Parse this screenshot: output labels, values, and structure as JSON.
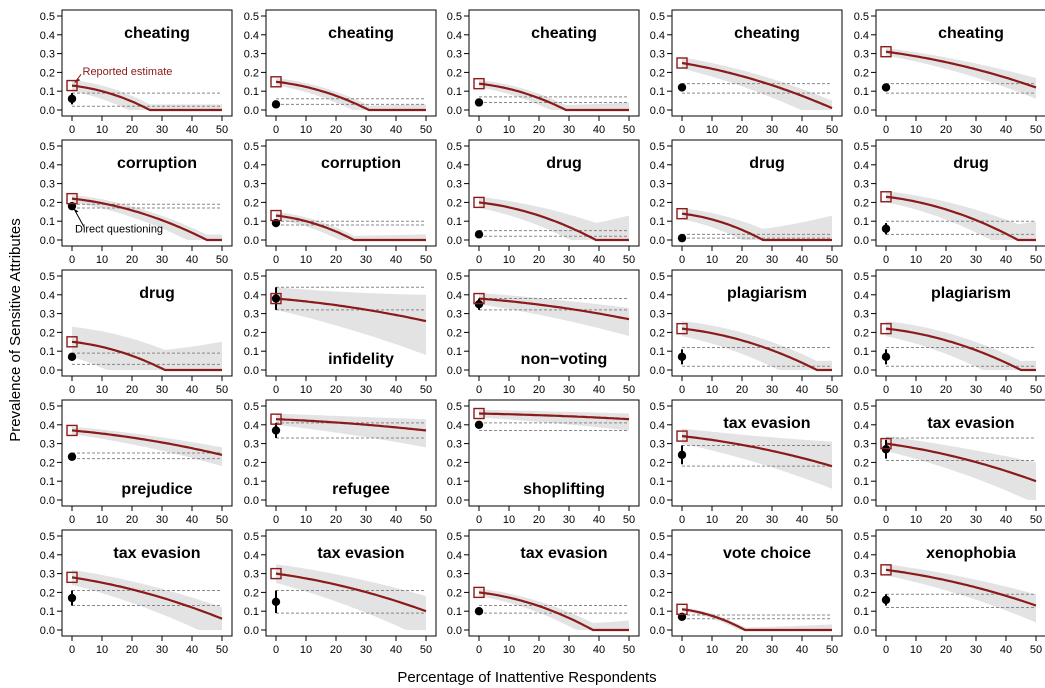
{
  "chart_data": {
    "type": "line",
    "xlabel": "Percentage of Inattentive Respondents",
    "ylabel": "Prevalence of Sensitive Attributes",
    "xlim": [
      0,
      50
    ],
    "ylim": [
      0,
      0.5
    ],
    "x_ticks": [
      "0",
      "10",
      "20",
      "30",
      "40",
      "50"
    ],
    "y_ticks": [
      "0.0",
      "0.1",
      "0.2",
      "0.3",
      "0.4",
      "0.5"
    ],
    "colors": {
      "line": "#8B1A1A",
      "band": "#e3e3e3",
      "direct": "#000000",
      "reference": "#888888"
    },
    "annotations": {
      "reported": {
        "text": "Reported estimate",
        "color": "#8B1A1A",
        "panel": 0
      },
      "direct": {
        "text": "Direct questioning",
        "color": "#000000",
        "panel": 5
      }
    },
    "panels": [
      {
        "label": "cheating",
        "label_pos": "top",
        "reported": 0.13,
        "zero_at": 26,
        "end": 0.0,
        "direct": 0.06,
        "direct_lo": 0.03,
        "direct_hi": 0.09,
        "ref": [
          0.09,
          0.02
        ],
        "band_w": 0.03,
        "band_end_hi": 0.03
      },
      {
        "label": "cheating",
        "label_pos": "top",
        "reported": 0.15,
        "zero_at": 31,
        "end": 0.0,
        "direct": 0.03,
        "direct_lo": 0.02,
        "direct_hi": 0.04,
        "ref": [
          0.06,
          0.03
        ],
        "band_w": 0.02,
        "band_end_hi": 0.03
      },
      {
        "label": "cheating",
        "label_pos": "top",
        "reported": 0.14,
        "zero_at": 29,
        "end": 0.0,
        "direct": 0.04,
        "direct_lo": 0.03,
        "direct_hi": 0.05,
        "ref": [
          0.07,
          0.04
        ],
        "band_w": 0.02,
        "band_end_hi": 0.04
      },
      {
        "label": "cheating",
        "label_pos": "top",
        "reported": 0.25,
        "zero_at": null,
        "end": 0.01,
        "direct": 0.12,
        "direct_lo": 0.1,
        "direct_hi": 0.14,
        "ref": [
          0.14,
          0.09
        ],
        "band_w": 0.03,
        "band_end_hi": 0.05
      },
      {
        "label": "cheating",
        "label_pos": "top",
        "reported": 0.31,
        "zero_at": null,
        "end": 0.12,
        "direct": 0.12,
        "direct_lo": 0.1,
        "direct_hi": 0.14,
        "ref": [
          0.14,
          0.09
        ],
        "band_w": 0.02,
        "band_end_hi": 0.17
      },
      {
        "label": "corruption",
        "label_pos": "top",
        "reported": 0.22,
        "zero_at": 45,
        "end": 0.0,
        "direct": 0.18,
        "direct_lo": 0.16,
        "direct_hi": 0.2,
        "ref": [
          0.19,
          0.17
        ],
        "band_w": 0.02,
        "band_end_hi": 0.03
      },
      {
        "label": "corruption",
        "label_pos": "top",
        "reported": 0.13,
        "zero_at": 26,
        "end": 0.0,
        "direct": 0.09,
        "direct_lo": 0.08,
        "direct_hi": 0.1,
        "ref": [
          0.1,
          0.08
        ],
        "band_w": 0.02,
        "band_end_hi": 0.03
      },
      {
        "label": "drug",
        "label_pos": "top",
        "reported": 0.2,
        "zero_at": 39,
        "end": 0.0,
        "direct": 0.03,
        "direct_lo": 0.02,
        "direct_hi": 0.04,
        "ref": [
          0.05,
          0.02
        ],
        "band_w": 0.03,
        "band_end_hi": 0.13
      },
      {
        "label": "drug",
        "label_pos": "top",
        "reported": 0.14,
        "zero_at": 27,
        "end": 0.0,
        "direct": 0.01,
        "direct_lo": 0.0,
        "direct_hi": 0.02,
        "ref": [
          0.03,
          0.01
        ],
        "band_w": 0.03,
        "band_end_hi": 0.13
      },
      {
        "label": "drug",
        "label_pos": "top",
        "reported": 0.23,
        "zero_at": 44,
        "end": 0.0,
        "direct": 0.06,
        "direct_lo": 0.03,
        "direct_hi": 0.09,
        "ref": [
          0.1,
          0.03
        ],
        "band_w": 0.03,
        "band_end_hi": 0.1
      },
      {
        "label": "drug",
        "label_pos": "top",
        "reported": 0.15,
        "zero_at": 31,
        "end": 0.0,
        "direct": 0.07,
        "direct_lo": 0.05,
        "direct_hi": 0.09,
        "ref": [
          0.09,
          0.03
        ],
        "band_w": 0.08,
        "band_end_hi": 0.15
      },
      {
        "label": "infidelity",
        "label_pos": "bottom",
        "reported": 0.38,
        "zero_at": null,
        "end": 0.26,
        "direct": 0.38,
        "direct_lo": 0.32,
        "direct_hi": 0.44,
        "ref": [
          0.44,
          0.32
        ],
        "band_w": 0.06,
        "band_end_hi": 0.4
      },
      {
        "label": "non−voting",
        "label_pos": "bottom",
        "reported": 0.38,
        "zero_at": null,
        "end": 0.27,
        "direct": 0.35,
        "direct_lo": 0.32,
        "direct_hi": 0.38,
        "ref": [
          0.38,
          0.32
        ],
        "band_w": 0.03,
        "band_end_hi": 0.33
      },
      {
        "label": "plagiarism",
        "label_pos": "top",
        "reported": 0.22,
        "zero_at": 45,
        "end": 0.0,
        "direct": 0.07,
        "direct_lo": 0.03,
        "direct_hi": 0.11,
        "ref": [
          0.12,
          0.02
        ],
        "band_w": 0.04,
        "band_end_hi": 0.05
      },
      {
        "label": "plagiarism",
        "label_pos": "top",
        "reported": 0.22,
        "zero_at": 45,
        "end": 0.0,
        "direct": 0.07,
        "direct_lo": 0.03,
        "direct_hi": 0.11,
        "ref": [
          0.12,
          0.02
        ],
        "band_w": 0.04,
        "band_end_hi": 0.05
      },
      {
        "label": "prejudice",
        "label_pos": "bottom",
        "reported": 0.37,
        "zero_at": null,
        "end": 0.24,
        "direct": 0.23,
        "direct_lo": 0.22,
        "direct_hi": 0.24,
        "ref": [
          0.25,
          0.22
        ],
        "band_w": 0.02,
        "band_end_hi": 0.28
      },
      {
        "label": "refugee",
        "label_pos": "bottom",
        "reported": 0.43,
        "zero_at": null,
        "end": 0.37,
        "direct": 0.37,
        "direct_lo": 0.33,
        "direct_hi": 0.41,
        "ref": [
          0.41,
          0.33
        ],
        "band_w": 0.03,
        "band_end_hi": 0.43
      },
      {
        "label": "shoplifting",
        "label_pos": "bottom",
        "reported": 0.46,
        "zero_at": null,
        "end": 0.43,
        "direct": 0.4,
        "direct_lo": 0.38,
        "direct_hi": 0.42,
        "ref": [
          0.41,
          0.37
        ],
        "band_w": 0.02,
        "band_end_hi": 0.46
      },
      {
        "label": "tax evasion",
        "label_pos": "top",
        "reported": 0.34,
        "zero_at": null,
        "end": 0.18,
        "direct": 0.24,
        "direct_lo": 0.19,
        "direct_hi": 0.29,
        "ref": [
          0.29,
          0.18
        ],
        "band_w": 0.04,
        "band_end_hi": 0.31
      },
      {
        "label": "tax evasion",
        "label_pos": "top",
        "reported": 0.3,
        "zero_at": null,
        "end": 0.1,
        "direct": 0.27,
        "direct_lo": 0.22,
        "direct_hi": 0.32,
        "ref": [
          0.33,
          0.21
        ],
        "band_w": 0.04,
        "band_end_hi": 0.2
      },
      {
        "label": "tax evasion",
        "label_pos": "top",
        "reported": 0.28,
        "zero_at": null,
        "end": 0.06,
        "direct": 0.17,
        "direct_lo": 0.13,
        "direct_hi": 0.21,
        "ref": [
          0.21,
          0.13
        ],
        "band_w": 0.04,
        "band_end_hi": 0.12
      },
      {
        "label": "tax evasion",
        "label_pos": "top",
        "reported": 0.3,
        "zero_at": null,
        "end": 0.1,
        "direct": 0.15,
        "direct_lo": 0.09,
        "direct_hi": 0.21,
        "ref": [
          0.21,
          0.09
        ],
        "band_w": 0.05,
        "band_end_hi": 0.18
      },
      {
        "label": "tax evasion",
        "label_pos": "top",
        "reported": 0.2,
        "zero_at": 38,
        "end": 0.0,
        "direct": 0.1,
        "direct_lo": 0.09,
        "direct_hi": 0.11,
        "ref": [
          0.13,
          0.09
        ],
        "band_w": 0.02,
        "band_end_hi": 0.05
      },
      {
        "label": "vote choice",
        "label_pos": "top",
        "reported": 0.11,
        "zero_at": 21,
        "end": 0.0,
        "direct": 0.07,
        "direct_lo": 0.06,
        "direct_hi": 0.08,
        "ref": [
          0.08,
          0.06
        ],
        "band_w": 0.01,
        "band_end_hi": 0.03
      },
      {
        "label": "xenophobia",
        "label_pos": "top",
        "reported": 0.32,
        "zero_at": null,
        "end": 0.13,
        "direct": 0.16,
        "direct_lo": 0.13,
        "direct_hi": 0.19,
        "ref": [
          0.19,
          0.12
        ],
        "band_w": 0.03,
        "band_end_hi": 0.19
      }
    ]
  }
}
